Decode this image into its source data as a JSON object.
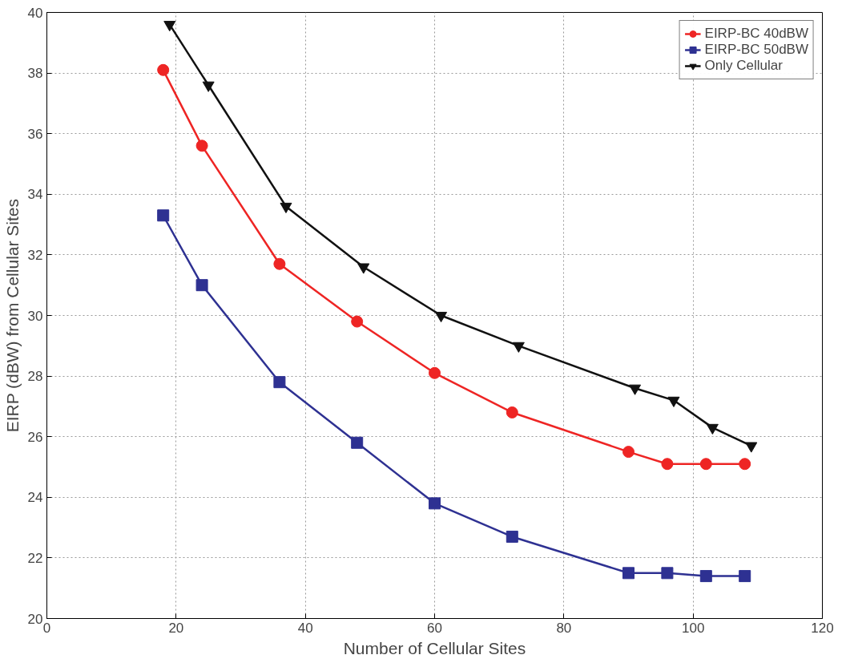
{
  "chart_data": {
    "type": "line",
    "xlabel": "Number of Cellular Sites",
    "ylabel": "EIRP (dBW) from Cellular Sites",
    "xlim": [
      0,
      120
    ],
    "xticks": [
      0,
      20,
      40,
      60,
      80,
      100,
      120
    ],
    "ylim": [
      20,
      40
    ],
    "yticks": [
      20,
      22,
      24,
      26,
      28,
      30,
      32,
      34,
      36,
      38,
      40
    ],
    "grid": true,
    "legend": "top right",
    "line_style": "solid",
    "series": [
      {
        "name": "EIRP-BC 40dBW",
        "color": "#ee2524",
        "marker": "circle",
        "x": [
          18,
          24,
          36,
          48,
          60,
          72,
          90,
          96,
          102,
          108
        ],
        "values": [
          38.1,
          35.6,
          31.7,
          29.8,
          28.1,
          26.8,
          25.5,
          25.1,
          25.1,
          25.1
        ]
      },
      {
        "name": "EIRP-BC 50dBW",
        "color": "#2e3192",
        "marker": "square",
        "x": [
          18,
          24,
          36,
          48,
          60,
          72,
          90,
          96,
          102,
          108
        ],
        "values": [
          33.3,
          31.0,
          27.8,
          25.8,
          23.8,
          22.7,
          21.5,
          21.5,
          21.4,
          21.4
        ]
      },
      {
        "name": "Only Cellular",
        "color": "#111111",
        "marker": "triangle",
        "x": [
          19,
          25,
          37,
          49,
          61,
          73,
          91,
          97,
          103,
          109
        ],
        "values": [
          39.6,
          37.6,
          33.6,
          31.6,
          30.0,
          29.0,
          27.6,
          27.2,
          26.3,
          25.7
        ]
      }
    ]
  }
}
